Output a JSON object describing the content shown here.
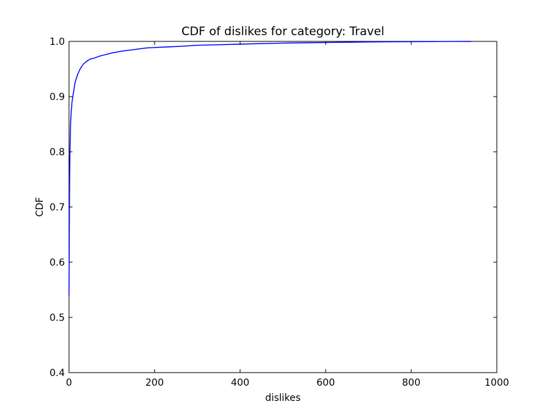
{
  "chart_data": {
    "type": "line",
    "title": "CDF of dislikes for category: Travel",
    "xlabel": "dislikes",
    "ylabel": "CDF",
    "xlim": [
      0,
      1000
    ],
    "ylim": [
      0.4,
      1.0
    ],
    "xticks": [
      0,
      200,
      400,
      600,
      800,
      1000
    ],
    "yticks": [
      0.4,
      0.5,
      0.6,
      0.7,
      0.8,
      0.9,
      1.0
    ],
    "xtick_labels": [
      "0",
      "200",
      "400",
      "600",
      "800",
      "1000"
    ],
    "ytick_labels": [
      "0.4",
      "0.5",
      "0.6",
      "0.7",
      "0.8",
      "0.9",
      "1.0"
    ],
    "grid": false,
    "legend": "none",
    "series": [
      {
        "color": "#0000ff",
        "x": [
          0,
          0.5,
          1,
          1.5,
          2,
          3,
          4,
          5,
          6,
          7,
          8,
          9,
          10,
          12,
          14,
          16,
          18,
          20,
          23,
          26,
          30,
          35,
          40,
          45,
          50,
          60,
          70,
          80,
          90,
          100,
          120,
          140,
          160,
          180,
          200,
          230,
          260,
          300,
          350,
          400,
          450,
          500,
          550,
          600,
          650,
          700,
          750,
          800,
          850,
          900,
          940
        ],
        "y": [
          0.54,
          0.62,
          0.7,
          0.75,
          0.79,
          0.83,
          0.855,
          0.87,
          0.88,
          0.89,
          0.895,
          0.9,
          0.905,
          0.915,
          0.925,
          0.93,
          0.935,
          0.94,
          0.945,
          0.95,
          0.955,
          0.96,
          0.963,
          0.966,
          0.968,
          0.97,
          0.973,
          0.975,
          0.977,
          0.979,
          0.982,
          0.984,
          0.986,
          0.988,
          0.989,
          0.99,
          0.991,
          0.993,
          0.994,
          0.995,
          0.996,
          0.997,
          0.9975,
          0.998,
          0.9985,
          0.999,
          0.9993,
          0.9995,
          0.9997,
          0.9999,
          1.0
        ]
      }
    ]
  }
}
